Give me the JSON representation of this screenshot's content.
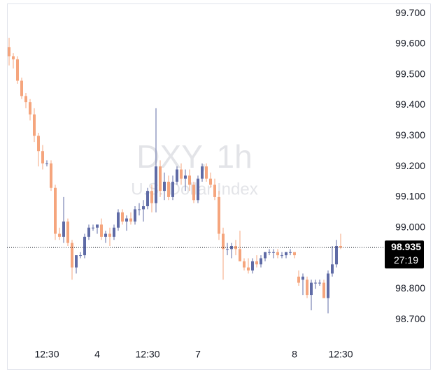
{
  "chart_data": {
    "type": "candlestick",
    "watermark": {
      "title": "DXY, 1h",
      "subtitle": "U.S. Dollar Index"
    },
    "categories": [
      null,
      null,
      null,
      null,
      null,
      null,
      null,
      null,
      null,
      "12:30",
      null,
      null,
      null,
      null,
      null,
      null,
      null,
      null,
      null,
      null,
      null,
      "4",
      null,
      null,
      null,
      null,
      null,
      null,
      null,
      null,
      null,
      null,
      null,
      "12:30",
      null,
      null,
      null,
      null,
      null,
      null,
      null,
      null,
      null,
      null,
      null,
      "7",
      null,
      null,
      null,
      null,
      null,
      null,
      null,
      null,
      null,
      null,
      null,
      null,
      null,
      null,
      null,
      null,
      null,
      null,
      null,
      null,
      null,
      null,
      "8",
      null,
      null,
      null,
      null,
      null,
      null,
      null,
      null,
      null,
      null,
      "12:30"
    ],
    "open": [
      99.59,
      99.56,
      99.55,
      99.48,
      99.43,
      99.41,
      99.37,
      99.3,
      99.25,
      99.21,
      99.21,
      99.13,
      98.98,
      98.97,
      99.02,
      98.95,
      98.87,
      98.91,
      98.91,
      98.97,
      99.0,
      99.0,
      99.01,
      98.97,
      98.98,
      98.97,
      99.0,
      99.05,
      99.02,
      99.03,
      99.02,
      99.06,
      99.06,
      99.07,
      99.12,
      99.08,
      99.2,
      99.12,
      99.15,
      99.1,
      99.15,
      99.19,
      99.16,
      99.17,
      99.14,
      99.09,
      99.16,
      99.2,
      99.16,
      99.14,
      99.1,
      98.98,
      98.93,
      98.93,
      98.94,
      98.93,
      98.89,
      98.87,
      98.86,
      98.89,
      98.88,
      98.9,
      98.92,
      98.92,
      98.92,
      98.91,
      98.91,
      98.92,
      98.92,
      98.84,
      98.83,
      98.83,
      98.78,
      98.82,
      98.82,
      98.82,
      98.77,
      98.85,
      98.88,
      98.94
    ],
    "high": [
      99.62,
      99.57,
      99.56,
      99.49,
      99.44,
      99.42,
      99.39,
      99.31,
      99.27,
      99.22,
      99.22,
      99.14,
      99.0,
      99.1,
      99.03,
      98.96,
      98.91,
      98.92,
      98.98,
      99.01,
      99.01,
      99.01,
      99.03,
      98.99,
      99.0,
      99.01,
      99.06,
      99.06,
      99.04,
      99.05,
      99.07,
      99.08,
      99.09,
      99.13,
      99.14,
      99.39,
      99.22,
      99.18,
      99.17,
      99.17,
      99.2,
      99.21,
      99.19,
      99.19,
      99.15,
      99.17,
      99.21,
      99.21,
      99.18,
      99.16,
      99.12,
      99.0,
      98.95,
      98.95,
      98.96,
      98.99,
      98.9,
      98.9,
      98.9,
      98.91,
      98.91,
      98.92,
      98.93,
      98.93,
      98.93,
      98.92,
      98.92,
      98.93,
      98.92,
      98.86,
      98.85,
      98.84,
      98.83,
      98.83,
      98.83,
      98.83,
      98.86,
      98.94,
      98.96,
      98.98
    ],
    "low": [
      99.53,
      99.52,
      99.47,
      99.42,
      99.39,
      99.35,
      99.28,
      99.2,
      99.19,
      99.2,
      99.12,
      98.96,
      98.96,
      98.95,
      98.94,
      98.83,
      98.85,
      98.9,
      98.9,
      98.96,
      98.99,
      98.98,
      98.96,
      98.95,
      98.94,
      98.96,
      98.99,
      99.01,
      98.99,
      99.01,
      99.01,
      99.04,
      99.02,
      99.06,
      99.05,
      99.05,
      99.1,
      99.09,
      99.09,
      99.09,
      99.14,
      99.14,
      99.12,
      99.12,
      99.08,
      99.08,
      99.15,
      99.15,
      99.13,
      99.09,
      98.96,
      98.83,
      98.91,
      98.9,
      98.91,
      98.89,
      98.86,
      98.85,
      98.85,
      98.87,
      98.87,
      98.89,
      98.91,
      98.9,
      98.9,
      98.9,
      98.9,
      98.91,
      98.9,
      98.81,
      98.78,
      98.77,
      98.73,
      98.8,
      98.81,
      98.77,
      98.72,
      98.84,
      98.87,
      98.93
    ],
    "close": [
      99.56,
      99.55,
      99.48,
      99.43,
      99.41,
      99.37,
      99.3,
      99.25,
      99.21,
      99.21,
      99.13,
      98.98,
      98.97,
      99.02,
      98.95,
      98.87,
      98.91,
      98.91,
      98.97,
      99.0,
      99.0,
      99.01,
      98.97,
      98.98,
      98.97,
      99.0,
      99.05,
      99.02,
      99.03,
      99.02,
      99.06,
      99.06,
      99.07,
      99.12,
      99.08,
      99.2,
      99.12,
      99.15,
      99.1,
      99.15,
      99.19,
      99.16,
      99.17,
      99.14,
      99.09,
      99.16,
      99.2,
      99.16,
      99.14,
      99.1,
      98.98,
      98.93,
      98.93,
      98.94,
      98.93,
      98.89,
      98.87,
      98.86,
      98.89,
      98.88,
      98.9,
      98.92,
      98.92,
      98.92,
      98.91,
      98.91,
      98.92,
      98.92,
      98.91,
      98.82,
      98.84,
      98.78,
      98.82,
      98.82,
      98.82,
      98.77,
      98.85,
      98.88,
      98.94,
      98.935
    ],
    "up_color": "#5f6ba6",
    "down_color": "#f5a57d",
    "current_price": 98.935,
    "countdown": "27:19",
    "ylim": [
      98.65,
      99.73
    ],
    "yticks": [
      {
        "value": 98.7,
        "label": "98.700"
      },
      {
        "value": 98.8,
        "label": "98.800"
      },
      {
        "value": 99.0,
        "label": "99.000"
      },
      {
        "value": 99.1,
        "label": "99.100"
      },
      {
        "value": 99.2,
        "label": "99.200"
      },
      {
        "value": 99.3,
        "label": "99.300"
      },
      {
        "value": 99.4,
        "label": "99.400"
      },
      {
        "value": 99.5,
        "label": "99.500"
      },
      {
        "value": 99.6,
        "label": "99.600"
      },
      {
        "value": 99.7,
        "label": "99.700"
      }
    ]
  }
}
